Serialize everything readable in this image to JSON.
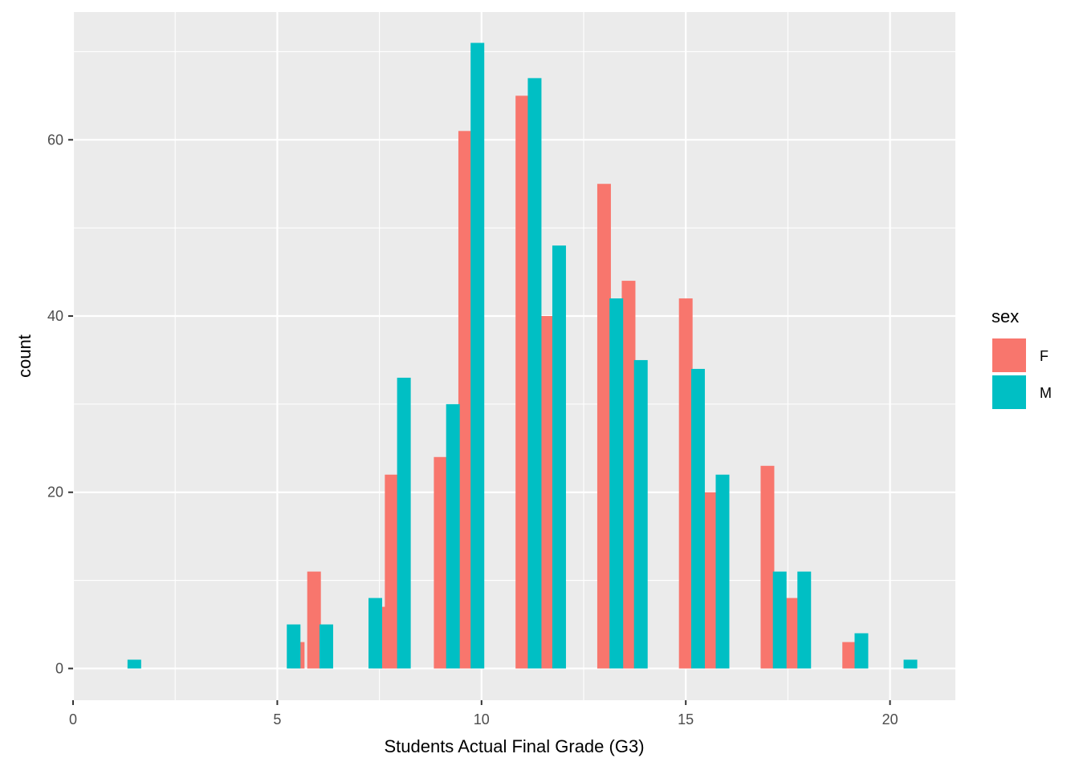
{
  "chart_data": {
    "type": "bar",
    "xlabel": "Students Actual Final Grade (G3)",
    "ylabel": "count",
    "xlim": [
      0,
      21.6
    ],
    "ylim": [
      -3.6,
      74.5
    ],
    "x_ticks": [
      0,
      5,
      10,
      15,
      20
    ],
    "y_ticks": [
      0,
      20,
      40,
      60
    ],
    "grid": true,
    "bin_width": 2,
    "legend": {
      "title": "sex",
      "position": "right"
    },
    "series": [
      {
        "name": "F",
        "color": "#F8766D",
        "points": [
          {
            "x": 5.5,
            "y": 3
          },
          {
            "x": 5.9,
            "y": 11
          },
          {
            "x": 7.5,
            "y": 7
          },
          {
            "x": 7.8,
            "y": 22
          },
          {
            "x": 9.0,
            "y": 24
          },
          {
            "x": 9.6,
            "y": 61
          },
          {
            "x": 11.0,
            "y": 65
          },
          {
            "x": 11.6,
            "y": 40
          },
          {
            "x": 13.0,
            "y": 55
          },
          {
            "x": 13.6,
            "y": 44
          },
          {
            "x": 15.0,
            "y": 42
          },
          {
            "x": 15.6,
            "y": 20
          },
          {
            "x": 17.0,
            "y": 23
          },
          {
            "x": 17.6,
            "y": 8
          },
          {
            "x": 19.0,
            "y": 3
          }
        ]
      },
      {
        "name": "M",
        "color": "#00BFC4",
        "points": [
          {
            "x": 1.5,
            "y": 1
          },
          {
            "x": 5.4,
            "y": 5
          },
          {
            "x": 6.2,
            "y": 5
          },
          {
            "x": 7.4,
            "y": 8
          },
          {
            "x": 8.1,
            "y": 33
          },
          {
            "x": 9.3,
            "y": 30
          },
          {
            "x": 9.9,
            "y": 71
          },
          {
            "x": 11.3,
            "y": 67
          },
          {
            "x": 11.9,
            "y": 48
          },
          {
            "x": 13.3,
            "y": 42
          },
          {
            "x": 13.9,
            "y": 35
          },
          {
            "x": 15.3,
            "y": 34
          },
          {
            "x": 15.9,
            "y": 22
          },
          {
            "x": 17.3,
            "y": 11
          },
          {
            "x": 17.9,
            "y": 11
          },
          {
            "x": 19.3,
            "y": 4
          },
          {
            "x": 20.5,
            "y": 1
          }
        ]
      }
    ]
  }
}
